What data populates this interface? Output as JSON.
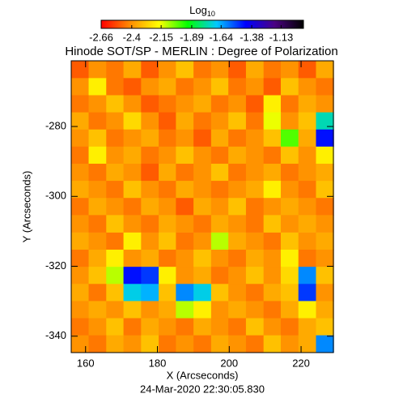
{
  "chart_data": {
    "type": "heatmap",
    "title": "Hinode SOT/SP - MERLIN : Degree of Polarization",
    "colorbar_label": {
      "text": "Log",
      "subscript": "10"
    },
    "xlabel": "X (Arcseconds)",
    "ylabel": "Y (Arcseconds)",
    "footer": "24-Mar-2020 22:30:05.830",
    "xlim": [
      156,
      229
    ],
    "ylim": [
      -344.7,
      -261.2
    ],
    "xticks": [
      160,
      180,
      200,
      220
    ],
    "yticks": [
      -280,
      -300,
      -320,
      -340
    ],
    "cblim": [
      -2.66,
      -0.94
    ],
    "cbticks": [
      -2.66,
      -2.4,
      -2.15,
      -1.89,
      -1.64,
      -1.38,
      -1.13
    ],
    "colormap": [
      "#ff0000",
      "#ff8c00",
      "#ffff00",
      "#00ff00",
      "#00c8ff",
      "#0000ff",
      "#4b0082",
      "#000000"
    ],
    "x": [
      158.4,
      163.3,
      168.2,
      173.0,
      177.9,
      182.8,
      187.6,
      192.5,
      197.4,
      202.2,
      207.1,
      212.0,
      216.8,
      221.7,
      226.6
    ],
    "y": [
      -263.7,
      -268.6,
      -273.5,
      -278.4,
      -283.3,
      -288.2,
      -293.1,
      -298.0,
      -302.9,
      -307.8,
      -312.8,
      -317.7,
      -322.6,
      -327.5,
      -332.4,
      -337.3,
      -342.2
    ],
    "z": [
      [
        -2.5,
        -2.4,
        -2.45,
        -2.35,
        -2.5,
        -2.4,
        -2.3,
        -2.45,
        -2.4,
        -2.5,
        -2.35,
        -2.45,
        -2.4,
        -2.5,
        -2.35
      ],
      [
        -2.4,
        -2.2,
        -2.45,
        -2.5,
        -2.4,
        -2.35,
        -2.45,
        -2.4,
        -2.3,
        -2.45,
        -2.4,
        -2.5,
        -2.3,
        -2.4,
        -2.45
      ],
      [
        -2.45,
        -2.4,
        -2.3,
        -2.4,
        -2.5,
        -2.45,
        -2.4,
        -2.35,
        -2.45,
        -2.4,
        -2.5,
        -2.2,
        -2.45,
        -2.35,
        -2.4
      ],
      [
        -2.35,
        -2.45,
        -2.4,
        -2.25,
        -2.4,
        -2.5,
        -2.35,
        -2.45,
        -2.4,
        -2.3,
        -2.45,
        -2.15,
        -2.4,
        -2.3,
        -1.75
      ],
      [
        -2.4,
        -2.3,
        -2.45,
        -2.4,
        -2.35,
        -2.45,
        -2.4,
        -2.5,
        -2.35,
        -2.45,
        -2.4,
        -2.3,
        -2.0,
        -2.35,
        -1.45
      ],
      [
        -2.45,
        -2.2,
        -2.4,
        -2.35,
        -2.45,
        -2.4,
        -2.3,
        -2.4,
        -2.45,
        -2.35,
        -2.4,
        -2.45,
        -2.3,
        -2.4,
        -2.2
      ],
      [
        -2.4,
        -2.45,
        -2.35,
        -2.4,
        -2.5,
        -2.35,
        -2.45,
        -2.4,
        -2.3,
        -2.45,
        -2.4,
        -2.35,
        -2.45,
        -2.4,
        -2.35
      ],
      [
        -2.35,
        -2.4,
        -2.45,
        -2.3,
        -2.4,
        -2.45,
        -2.35,
        -2.4,
        -2.45,
        -2.4,
        -2.35,
        -2.2,
        -2.4,
        -2.45,
        -2.3
      ],
      [
        -2.45,
        -2.35,
        -2.4,
        -2.45,
        -2.35,
        -2.4,
        -2.5,
        -2.35,
        -2.4,
        -2.3,
        -2.45,
        -2.4,
        -2.35,
        -2.4,
        -2.45
      ],
      [
        -2.4,
        -2.45,
        -2.3,
        -2.4,
        -2.45,
        -2.35,
        -2.4,
        -2.45,
        -2.35,
        -2.4,
        -2.45,
        -2.3,
        -2.4,
        -2.35,
        -2.4
      ],
      [
        -2.35,
        -2.4,
        -2.45,
        -2.2,
        -2.4,
        -2.3,
        -2.45,
        -2.4,
        -2.1,
        -2.35,
        -2.4,
        -2.45,
        -2.3,
        -2.4,
        -2.35
      ],
      [
        -2.45,
        -2.35,
        -2.2,
        -2.4,
        -2.35,
        -2.45,
        -2.4,
        -2.3,
        -2.4,
        -2.45,
        -2.35,
        -2.4,
        -2.2,
        -2.45,
        -2.4
      ],
      [
        -2.4,
        -2.3,
        -2.1,
        -1.45,
        -1.5,
        -2.2,
        -2.4,
        -2.35,
        -2.45,
        -2.4,
        -2.3,
        -2.4,
        -2.25,
        -1.6,
        -2.3
      ],
      [
        -2.35,
        -2.45,
        -2.3,
        -1.7,
        -1.65,
        -2.3,
        -1.6,
        -1.7,
        -2.3,
        -2.4,
        -2.45,
        -2.35,
        -2.3,
        -1.5,
        -2.4
      ],
      [
        -2.4,
        -2.35,
        -2.4,
        -2.3,
        -2.4,
        -2.35,
        -2.1,
        -2.2,
        -2.4,
        -2.35,
        -2.4,
        -2.45,
        -2.35,
        -2.2,
        -2.35
      ],
      [
        -2.45,
        -2.4,
        -2.3,
        -2.45,
        -2.35,
        -2.4,
        -2.45,
        -2.35,
        -2.4,
        -2.45,
        -2.3,
        -2.4,
        -2.45,
        -2.35,
        -2.3
      ],
      [
        -2.4,
        -2.45,
        -2.35,
        -2.4,
        -2.3,
        -2.45,
        -2.4,
        -2.45,
        -2.35,
        -2.4,
        -2.45,
        -2.3,
        -2.4,
        -2.35,
        -1.6
      ]
    ]
  }
}
